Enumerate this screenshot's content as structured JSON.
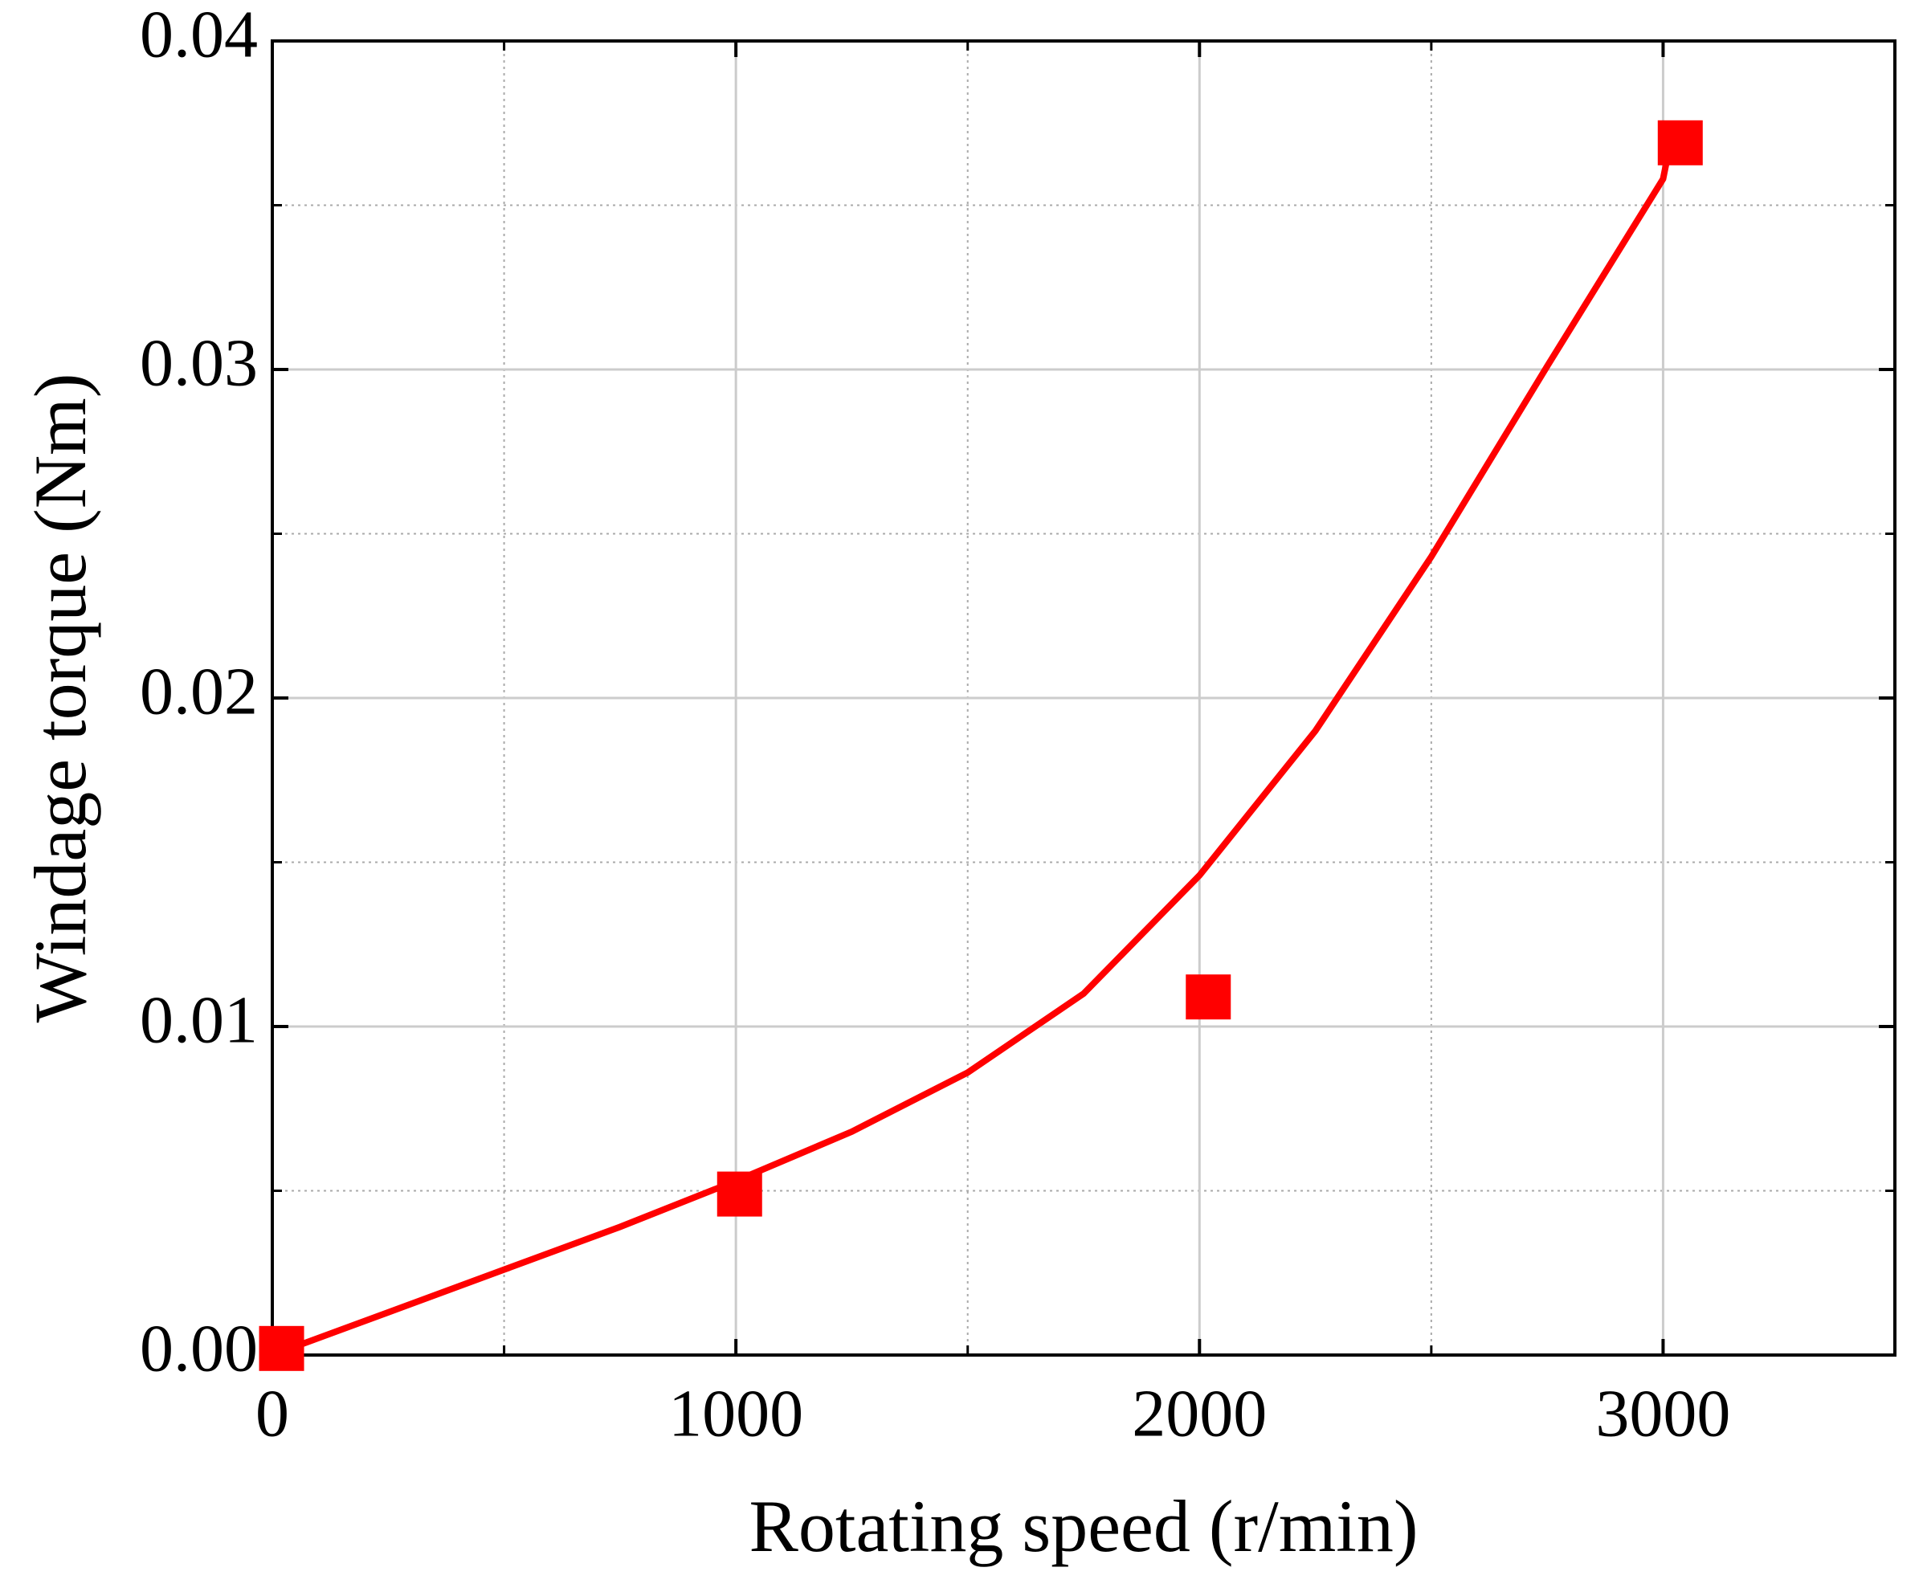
{
  "chart_data": {
    "type": "scatter",
    "x_label": "Rotating speed (r/min)",
    "y_label": "Windage torque (Nm)",
    "xlim": [
      0,
      3500
    ],
    "xticks": [
      0,
      1000,
      2000,
      3000
    ],
    "xminorticks": [
      500,
      1500,
      2500
    ],
    "ylim": [
      0,
      0.04
    ],
    "yticks": [
      {
        "value": 0,
        "label": "0.00"
      },
      0.01,
      0.02,
      0.03,
      0.04
    ],
    "yminorticks": [
      0.005,
      0.015,
      0.025,
      0.035
    ],
    "grid": true,
    "series": [
      {
        "color": "#ff0000",
        "marker": "square",
        "x": [
          20,
          1008,
          2019,
          3037
        ],
        "values": [
          0.0002,
          0.0049,
          0.0109,
          0.0369
        ]
      },
      {
        "color": "#ff0000",
        "marker": "line",
        "x": [
          0,
          250,
          500,
          750,
          1000,
          1250,
          1500,
          1750,
          2000,
          2250,
          2500,
          2750,
          3000,
          3010
        ],
        "values": [
          0,
          0.0013,
          0.0026,
          0.0039,
          0.0053,
          0.0068,
          0.0086,
          0.011,
          0.0146,
          0.019,
          0.0243,
          0.0301,
          0.0358,
          0.0365
        ]
      }
    ]
  }
}
